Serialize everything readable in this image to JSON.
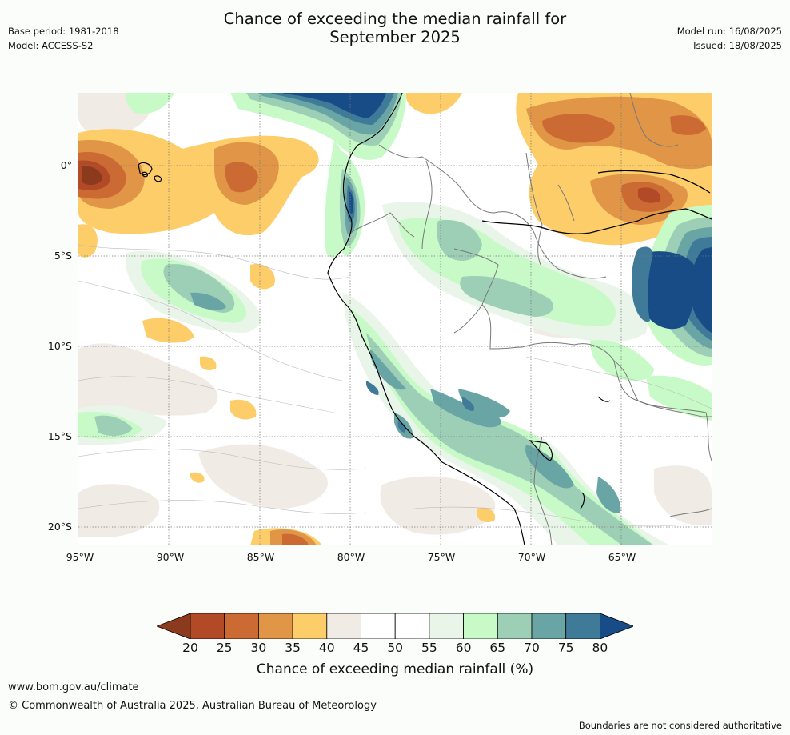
{
  "header": {
    "base_period": "Base period: 1981-2018",
    "model": "Model: ACCESS-S2",
    "title_line1": "Chance of exceeding the median rainfall for",
    "title_line2": "September 2025",
    "model_run": "Model run: 16/08/2025",
    "issued": "Issued: 18/08/2025"
  },
  "map": {
    "lat_labels": [
      "0°",
      "5°S",
      "10°S",
      "15°S",
      "20°S"
    ],
    "lon_labels": [
      "95°W",
      "90°W",
      "85°W",
      "80°W",
      "75°W",
      "70°W",
      "65°W"
    ]
  },
  "colorbar": {
    "title": "Chance of exceeding median rainfall (%)",
    "ticks": [
      "20",
      "25",
      "30",
      "35",
      "40",
      "45",
      "50",
      "55",
      "60",
      "65",
      "70",
      "75",
      "80"
    ],
    "colors": [
      "#8c3a1e",
      "#b24a27",
      "#cc6a33",
      "#e09547",
      "#fdcd6a",
      "#f1ebe6",
      "#ffffff",
      "#ffffff",
      "#eaf5ea",
      "#c8fac8",
      "#9ccfb6",
      "#6aa5a5",
      "#3f7a99",
      "#184c86"
    ]
  },
  "footer": {
    "website": "www.bom.gov.au/climate",
    "copyright": "© Commonwealth of Australia 2025, Australian Bureau of Meteorology",
    "disclaimer": "Boundaries are not considered authoritative"
  }
}
